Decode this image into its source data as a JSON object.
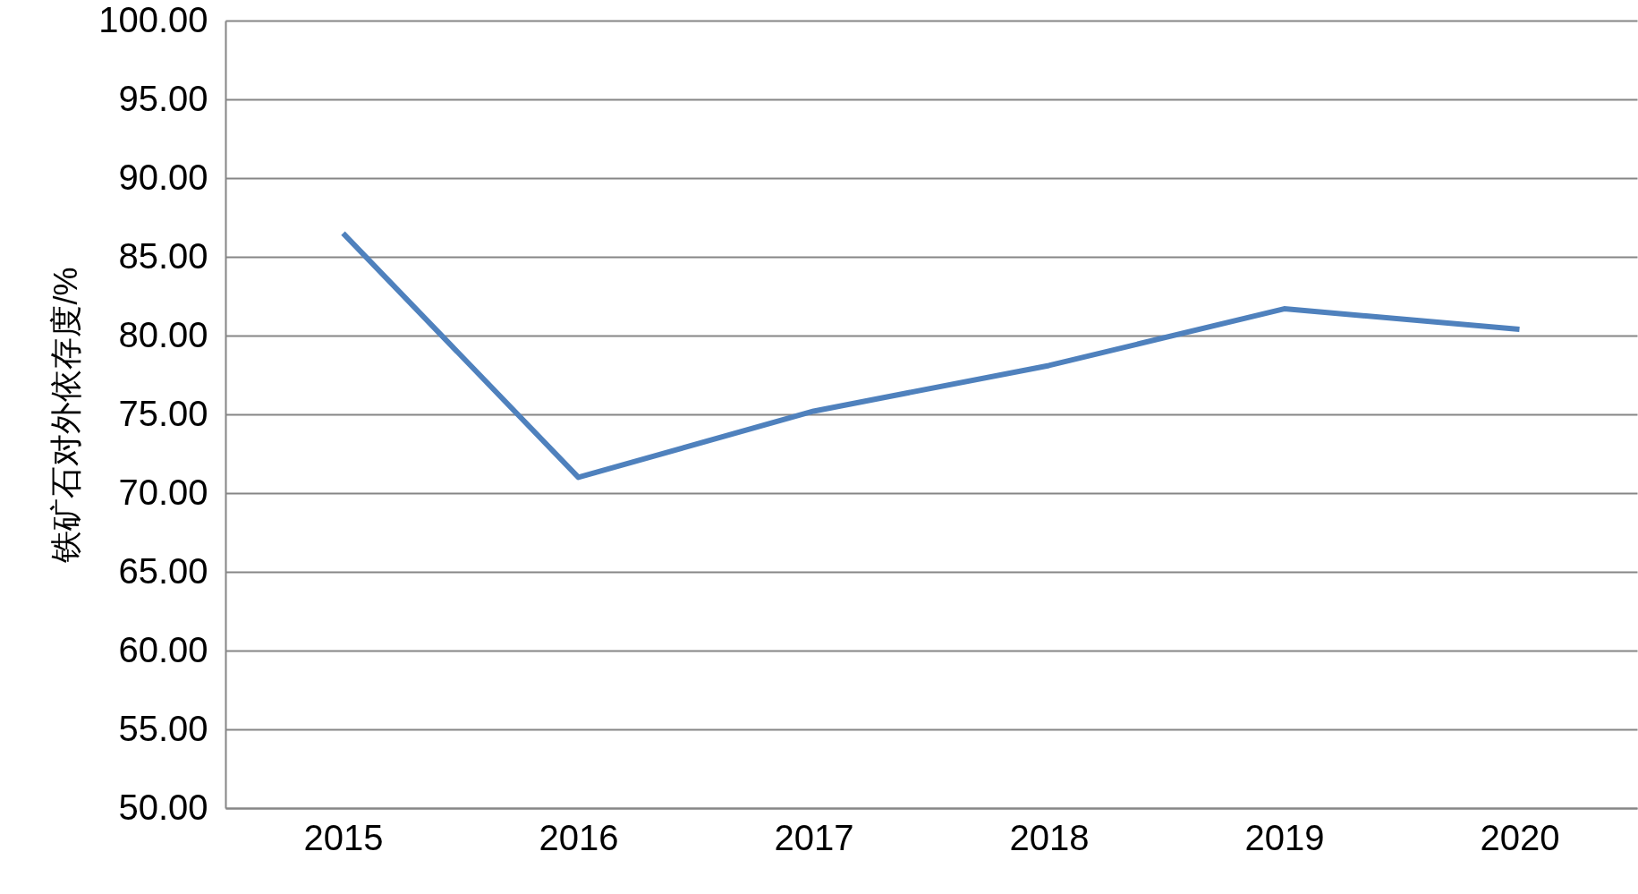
{
  "chart_data": {
    "type": "line",
    "ylabel": "铁矿石对外依存度/%",
    "categories": [
      "2015",
      "2016",
      "2017",
      "2018",
      "2019",
      "2020"
    ],
    "series": [
      {
        "color": "#4f81bd",
        "values": [
          86.5,
          71.0,
          75.2,
          78.1,
          81.7,
          80.4
        ]
      }
    ],
    "ylim": [
      50,
      100
    ],
    "yticks": [
      {
        "value": 50,
        "label": "50.00"
      },
      {
        "value": 55,
        "label": "55.00"
      },
      {
        "value": 60,
        "label": "60.00"
      },
      {
        "value": 65,
        "label": "65.00"
      },
      {
        "value": 70,
        "label": "70.00"
      },
      {
        "value": 75,
        "label": "75.00"
      },
      {
        "value": 80,
        "label": "80.00"
      },
      {
        "value": 85,
        "label": "85.00"
      },
      {
        "value": 90,
        "label": "90.00"
      },
      {
        "value": 95,
        "label": "95.00"
      },
      {
        "value": 100,
        "label": "100.00"
      }
    ],
    "grid": "y",
    "marker": "none",
    "line_style": "solid"
  }
}
